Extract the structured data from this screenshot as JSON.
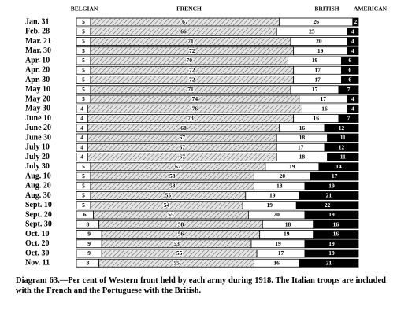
{
  "chart_data": {
    "type": "stacked-bar-horizontal",
    "caption": "Diagram 63.—Per cent of Western front held by each army during 1918. The Italian troops are included with the French and the Portuguese with the British.",
    "categories": [
      "Jan. 31",
      "Feb. 28",
      "Mar. 21",
      "Mar. 30",
      "Apr. 10",
      "Apr. 20",
      "Apr. 30",
      "May 10",
      "May 20",
      "May 30",
      "June 10",
      "June 20",
      "June 30",
      "July 10",
      "July 20",
      "July 30",
      "Aug. 10",
      "Aug. 20",
      "Aug. 30",
      "Sept. 10",
      "Sept. 20",
      "Sept. 30",
      "Oct. 10",
      "Oct. 20",
      "Oct. 30",
      "Nov. 11"
    ],
    "xlim": [
      0,
      100
    ],
    "series": [
      {
        "name": "BELGIAN",
        "color": "#ffffff",
        "values": [
          5,
          5,
          5,
          5,
          5,
          5,
          5,
          5,
          5,
          4,
          4,
          4,
          4,
          4,
          4,
          5,
          5,
          5,
          5,
          5,
          6,
          8,
          9,
          9,
          9,
          8
        ]
      },
      {
        "name": "FRENCH",
        "color": "#e4e4e4",
        "hatch": true,
        "values": [
          67,
          66,
          71,
          72,
          70,
          72,
          72,
          71,
          74,
          76,
          73,
          68,
          67,
          67,
          67,
          62,
          58,
          58,
          55,
          54,
          55,
          58,
          56,
          53,
          55,
          55
        ]
      },
      {
        "name": "BRITISH",
        "color": "#ffffff",
        "values": [
          26,
          25,
          20,
          19,
          19,
          17,
          17,
          17,
          17,
          16,
          16,
          16,
          18,
          17,
          18,
          19,
          20,
          18,
          19,
          19,
          20,
          18,
          19,
          19,
          17,
          16
        ]
      },
      {
        "name": "AMERICAN",
        "color": "#000000",
        "values": [
          2,
          4,
          4,
          4,
          6,
          6,
          6,
          7,
          4,
          4,
          7,
          12,
          11,
          12,
          11,
          14,
          17,
          19,
          21,
          22,
          19,
          16,
          16,
          19,
          19,
          21
        ]
      }
    ]
  }
}
